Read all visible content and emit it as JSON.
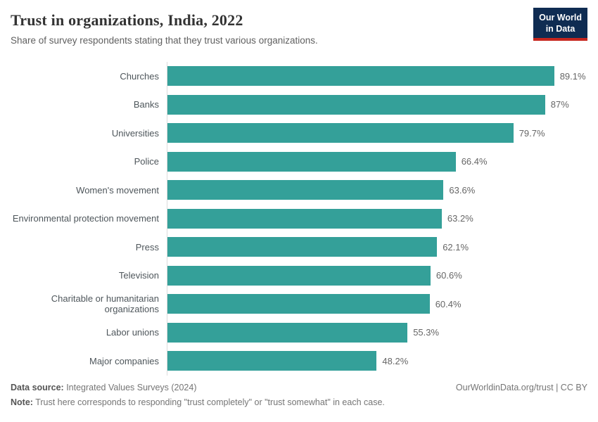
{
  "header": {
    "title": "Trust in organizations, India, 2022",
    "subtitle": "Share of survey respondents stating that they trust various organizations.",
    "logo": {
      "line1": "Our World",
      "line2": "in Data"
    }
  },
  "chart_data": {
    "type": "bar",
    "orientation": "horizontal",
    "title": "Trust in organizations, India, 2022",
    "subtitle": "Share of survey respondents stating that they trust various organizations.",
    "categories": [
      "Churches",
      "Banks",
      "Universities",
      "Police",
      "Women's movement",
      "Environmental protection movement",
      "Press",
      "Television",
      "Charitable or humanitarian organizations",
      "Labor unions",
      "Major companies"
    ],
    "values": [
      89.1,
      87,
      79.7,
      66.4,
      63.6,
      63.2,
      62.1,
      60.6,
      60.4,
      55.3,
      48.2
    ],
    "value_labels": [
      "89.1%",
      "87%",
      "79.7%",
      "66.4%",
      "63.6%",
      "63.2%",
      "62.1%",
      "60.6%",
      "60.4%",
      "55.3%",
      "48.2%"
    ],
    "xlabel": "",
    "ylabel": "",
    "xlim": [
      0,
      100
    ],
    "grid": false,
    "legend": "none",
    "bar_color": "#34A099"
  },
  "footer": {
    "datasource_label": "Data source:",
    "datasource_value": " Integrated Values Surveys (2024)",
    "note_label": "Note:",
    "note_value": " Trust here corresponds to responding \"trust completely\" or \"trust somewhat\" in each case.",
    "link": "OurWorldinData.org/trust | CC BY"
  },
  "colors": {
    "bar": "#34A099",
    "axis_line": "#dcdcdc",
    "logo_bg": "#0F2C52",
    "logo_underline": "#C6261E",
    "title_text": "#333333",
    "subtitle_text": "#606060"
  }
}
